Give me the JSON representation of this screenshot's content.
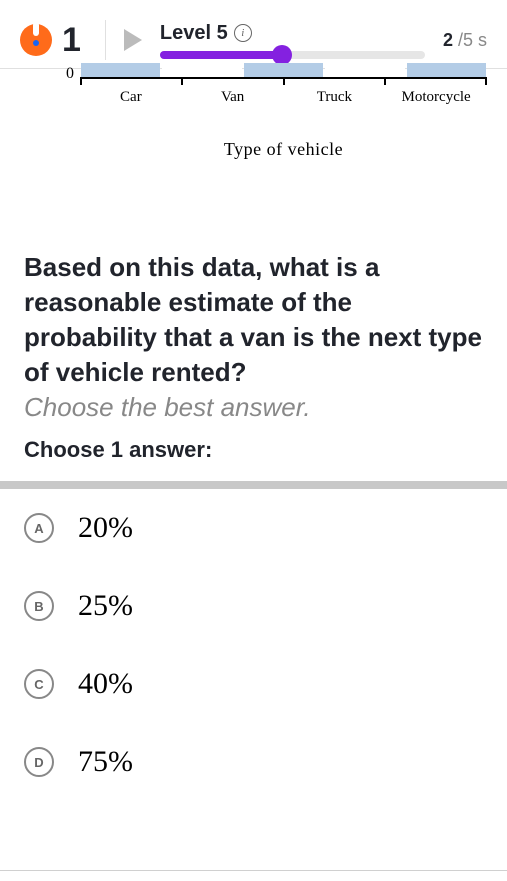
{
  "header": {
    "streak": "1",
    "level_label": "Level 5",
    "progress": {
      "pct": 46,
      "fill_color": "#8421e0",
      "thumb_color": "#8421e0",
      "track_color": "#e6e6e6"
    },
    "count_current": "2",
    "count_sep": " /5 s"
  },
  "chart": {
    "type": "bar",
    "y_zero_label": "0",
    "categories": [
      "Car",
      "Van",
      "Truck",
      "Motorcycle"
    ],
    "x_title": "Type of vehicle",
    "bar_color": "#b3cce6",
    "axis_color": "#000000",
    "displayed_segments": 5
  },
  "question": {
    "text": "Based on this data, what is a reasonable estimate of the probability that a van is the next type of vehicle rented?",
    "hint": "Choose the best answer.",
    "instruction": "Choose 1 answer:"
  },
  "answers": [
    {
      "letter": "A",
      "text": "20%"
    },
    {
      "letter": "B",
      "text": "25%"
    },
    {
      "letter": "C",
      "text": "40%"
    },
    {
      "letter": "D",
      "text": "75%"
    }
  ],
  "colors": {
    "text": "#21242c",
    "muted": "#888888",
    "border": "#e0e0e0",
    "accent_orange": "#ff6b1a"
  }
}
